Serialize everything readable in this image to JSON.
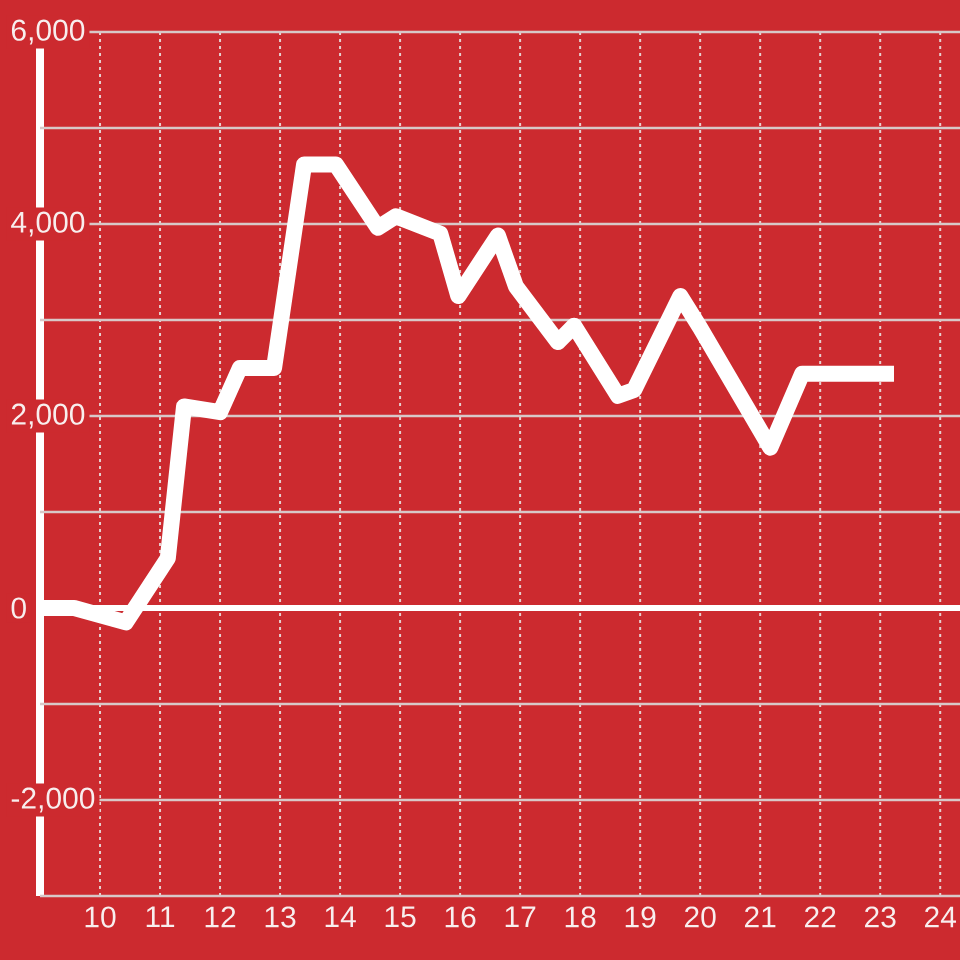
{
  "chart_data": {
    "type": "line",
    "color": "#ffffff",
    "x": [
      9.0,
      9.57,
      10.43,
      11.13,
      11.4,
      12.0,
      12.33,
      12.9,
      13.4,
      13.93,
      14.63,
      14.93,
      15.67,
      15.97,
      16.63,
      16.93,
      17.63,
      17.9,
      18.63,
      18.9,
      19.67,
      20.0,
      21.17,
      21.7,
      23.23
    ],
    "values": [
      0,
      0,
      -150,
      520,
      2100,
      2040,
      2500,
      2500,
      4620,
      4620,
      3960,
      4080,
      3900,
      3250,
      3880,
      3350,
      2770,
      2940,
      2210,
      2270,
      3250,
      2920,
      1670,
      2440,
      2440
    ],
    "xlim": [
      9,
      24.33
    ],
    "ylim": [
      -3000,
      6000
    ],
    "xticks": [
      10,
      11,
      12,
      13,
      14,
      15,
      16,
      17,
      18,
      19,
      20,
      21,
      22,
      23,
      24
    ],
    "yticks": [
      {
        "value": -3000,
        "label": null
      },
      {
        "value": -2000,
        "label": "-2,000"
      },
      {
        "value": -1000,
        "label": null
      },
      0,
      {
        "value": 1000,
        "label": null
      },
      {
        "value": 2000,
        "label": "2,000"
      },
      {
        "value": 3000,
        "label": null
      },
      {
        "value": 4000,
        "label": "4,000"
      },
      {
        "value": 5000,
        "label": null
      },
      {
        "value": 6000,
        "label": "6,000"
      }
    ],
    "grid": true,
    "ref_lines": [
      {
        "axis": "y",
        "value": 0,
        "color": "#ffffff"
      }
    ]
  }
}
